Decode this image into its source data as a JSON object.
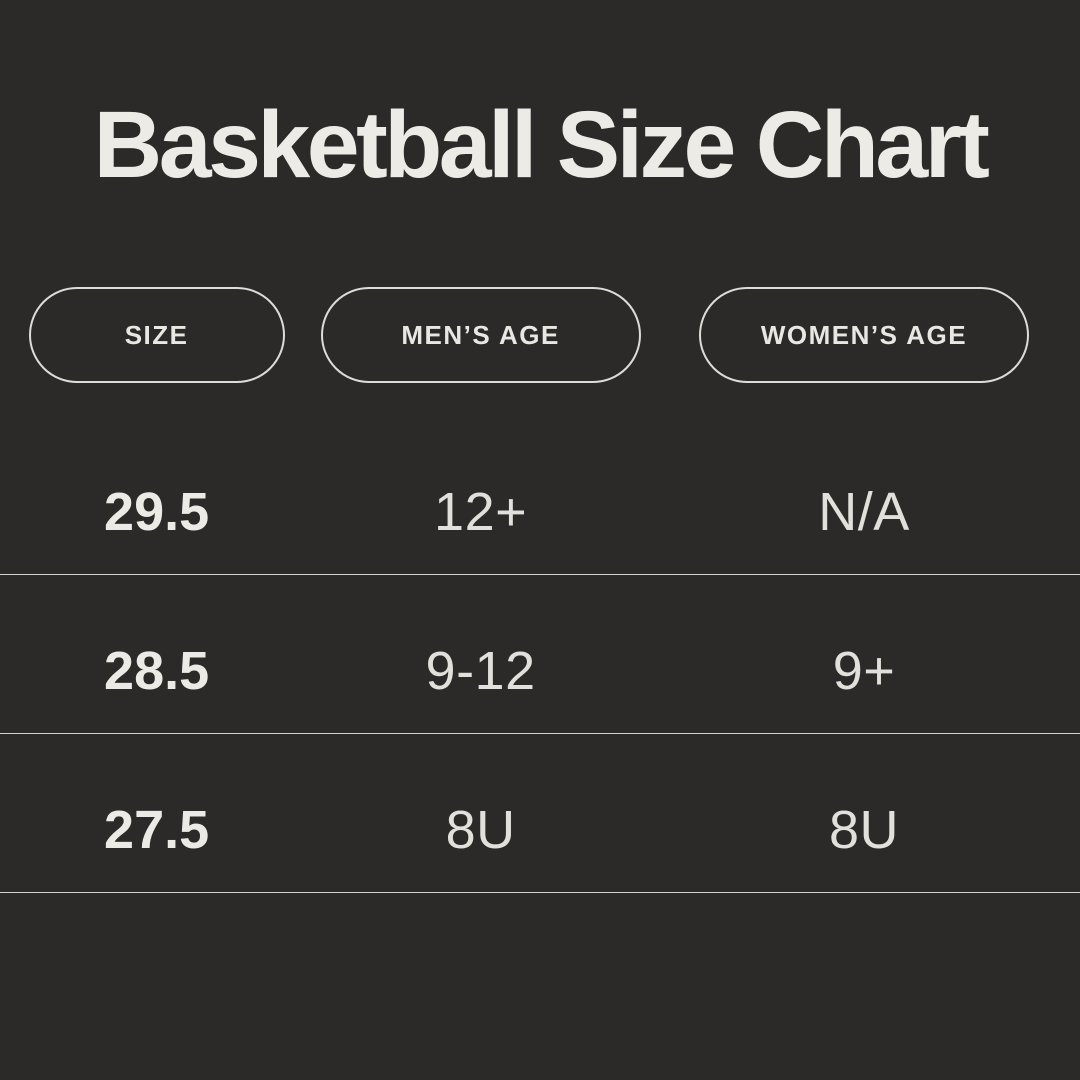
{
  "title": "Basketball Size Chart",
  "colors": {
    "background": "#2b2a28",
    "text": "#e9e7e2",
    "pill_border": "#dedcd7",
    "divider": "#d5d3ce"
  },
  "chart_data": {
    "type": "table",
    "title": "Basketball Size Chart",
    "columns": [
      "SIZE",
      "MEN’S AGE",
      "WOMEN’S AGE"
    ],
    "rows": [
      [
        "29.5",
        "12+",
        "N/A"
      ],
      [
        "28.5",
        "9-12",
        "9+"
      ],
      [
        "27.5",
        "8U",
        "8U"
      ]
    ]
  }
}
